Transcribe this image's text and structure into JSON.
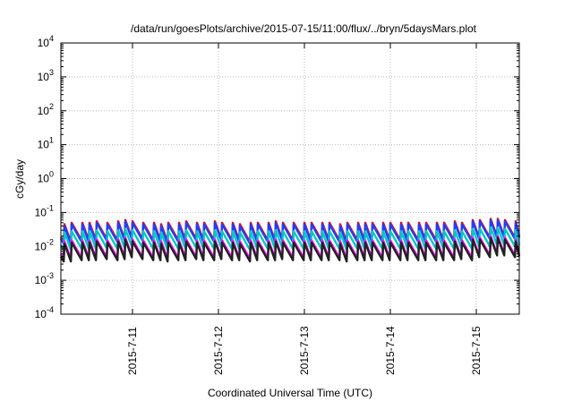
{
  "chart_data": {
    "type": "line",
    "title": "/data/run/goesPlots/archive/2015-07-15/11:00/flux/../bryn/5daysMars.plot",
    "xlabel": "Coordinated Universal Time (UTC)",
    "ylabel": "cGy/day",
    "yscale": "log",
    "ylim": [
      0.0001,
      10000
    ],
    "grid": true,
    "legend": "none",
    "y_ticks": [
      {
        "base": "10",
        "exp": "-4"
      },
      {
        "base": "10",
        "exp": "-3"
      },
      {
        "base": "10",
        "exp": "-2"
      },
      {
        "base": "10",
        "exp": "-1"
      },
      {
        "base": "10",
        "exp": "0"
      },
      {
        "base": "10",
        "exp": "1"
      },
      {
        "base": "10",
        "exp": "2"
      },
      {
        "base": "10",
        "exp": "3"
      },
      {
        "base": "10",
        "exp": "4"
      }
    ],
    "xlim": [
      "2015-07-10T04:00",
      "2015-07-15T12:00"
    ],
    "x_tick_labels": [
      "2015-7-11",
      "2015-7-12",
      "2015-7-13",
      "2015-7-14",
      "2015-7-15"
    ],
    "x_tick_dates": [
      "2015-07-11T00:00",
      "2015-07-12T00:00",
      "2015-07-13T00:00",
      "2015-07-14T00:00",
      "2015-07-15T00:00"
    ],
    "spike_times": [
      "2015-07-10T05:00",
      "2015-07-10T07:00",
      "2015-07-10T10:00",
      "2015-07-10T12:00",
      "2015-07-10T14:00",
      "2015-07-10T17:00",
      "2015-07-10T20:00",
      "2015-07-10T22:00",
      "2015-07-11T00:00",
      "2015-07-11T03:00",
      "2015-07-11T06:00",
      "2015-07-11T08:00",
      "2015-07-11T10:00",
      "2015-07-11T13:00",
      "2015-07-11T15:00",
      "2015-07-11T18:00",
      "2015-07-11T20:00",
      "2015-07-11T23:00",
      "2015-07-12T01:00",
      "2015-07-12T04:00",
      "2015-07-12T06:00",
      "2015-07-12T09:00",
      "2015-07-12T11:00",
      "2015-07-12T14:00",
      "2015-07-12T16:00",
      "2015-07-12T18:00",
      "2015-07-12T21:00",
      "2015-07-13T00:00",
      "2015-07-13T02:00",
      "2015-07-13T05:00",
      "2015-07-13T07:00",
      "2015-07-13T10:00",
      "2015-07-13T12:00",
      "2015-07-13T15:00",
      "2015-07-13T17:00",
      "2015-07-13T19:00",
      "2015-07-13T22:00",
      "2015-07-14T00:00",
      "2015-07-14T03:00",
      "2015-07-14T05:00",
      "2015-07-14T08:00",
      "2015-07-14T10:00",
      "2015-07-14T13:00",
      "2015-07-14T15:00",
      "2015-07-14T18:00",
      "2015-07-14T20:00",
      "2015-07-14T23:00",
      "2015-07-15T01:00",
      "2015-07-15T04:00",
      "2015-07-15T06:00",
      "2015-07-15T08:00",
      "2015-07-15T11:00"
    ],
    "trough_fraction": 0.3,
    "series": [
      {
        "color": "#ff0000",
        "peaks": [
          0.045,
          0.05,
          0.05,
          0.05,
          0.055,
          0.05,
          0.055,
          0.06,
          0.055,
          0.05,
          0.05,
          0.045,
          0.05,
          0.05,
          0.055,
          0.05,
          0.05,
          0.055,
          0.05,
          0.05,
          0.045,
          0.05,
          0.05,
          0.05,
          0.055,
          0.05,
          0.05,
          0.05,
          0.05,
          0.05,
          0.05,
          0.045,
          0.05,
          0.05,
          0.05,
          0.05,
          0.05,
          0.05,
          0.05,
          0.05,
          0.05,
          0.05,
          0.05,
          0.05,
          0.055,
          0.05,
          0.06,
          0.06,
          0.065,
          0.065,
          0.06,
          0.055
        ]
      },
      {
        "color": "#1f3fff",
        "peaks": [
          0.04,
          0.045,
          0.045,
          0.045,
          0.05,
          0.045,
          0.05,
          0.055,
          0.05,
          0.045,
          0.045,
          0.04,
          0.045,
          0.045,
          0.05,
          0.045,
          0.045,
          0.05,
          0.045,
          0.045,
          0.04,
          0.045,
          0.045,
          0.045,
          0.05,
          0.045,
          0.045,
          0.045,
          0.045,
          0.045,
          0.045,
          0.04,
          0.045,
          0.045,
          0.045,
          0.045,
          0.045,
          0.045,
          0.045,
          0.045,
          0.045,
          0.045,
          0.045,
          0.045,
          0.05,
          0.045,
          0.055,
          0.055,
          0.06,
          0.06,
          0.055,
          0.05
        ]
      },
      {
        "color": "#00c8c8",
        "peaks": [
          0.026,
          0.028,
          0.028,
          0.028,
          0.03,
          0.028,
          0.03,
          0.033,
          0.03,
          0.028,
          0.028,
          0.026,
          0.028,
          0.028,
          0.03,
          0.028,
          0.028,
          0.03,
          0.028,
          0.028,
          0.026,
          0.028,
          0.028,
          0.028,
          0.03,
          0.028,
          0.028,
          0.028,
          0.028,
          0.028,
          0.028,
          0.026,
          0.028,
          0.028,
          0.028,
          0.028,
          0.028,
          0.028,
          0.028,
          0.028,
          0.028,
          0.028,
          0.028,
          0.028,
          0.03,
          0.028,
          0.033,
          0.033,
          0.036,
          0.036,
          0.033,
          0.03
        ]
      },
      {
        "color": "#ff00ff",
        "peaks": [
          0.014,
          0.015,
          0.015,
          0.015,
          0.016,
          0.015,
          0.016,
          0.018,
          0.016,
          0.015,
          0.015,
          0.014,
          0.015,
          0.015,
          0.016,
          0.015,
          0.015,
          0.016,
          0.015,
          0.015,
          0.014,
          0.015,
          0.015,
          0.015,
          0.016,
          0.015,
          0.015,
          0.015,
          0.015,
          0.015,
          0.015,
          0.014,
          0.015,
          0.015,
          0.015,
          0.015,
          0.015,
          0.015,
          0.015,
          0.015,
          0.015,
          0.015,
          0.015,
          0.015,
          0.016,
          0.015,
          0.018,
          0.018,
          0.02,
          0.02,
          0.018,
          0.016
        ]
      },
      {
        "color": "#222222",
        "peaks": [
          0.012,
          0.013,
          0.013,
          0.013,
          0.014,
          0.013,
          0.014,
          0.016,
          0.014,
          0.013,
          0.013,
          0.012,
          0.013,
          0.013,
          0.014,
          0.013,
          0.013,
          0.014,
          0.013,
          0.013,
          0.012,
          0.013,
          0.013,
          0.013,
          0.014,
          0.013,
          0.013,
          0.013,
          0.013,
          0.013,
          0.013,
          0.012,
          0.013,
          0.013,
          0.013,
          0.013,
          0.013,
          0.013,
          0.013,
          0.013,
          0.013,
          0.013,
          0.013,
          0.013,
          0.014,
          0.013,
          0.016,
          0.016,
          0.018,
          0.018,
          0.016,
          0.014
        ]
      }
    ]
  }
}
